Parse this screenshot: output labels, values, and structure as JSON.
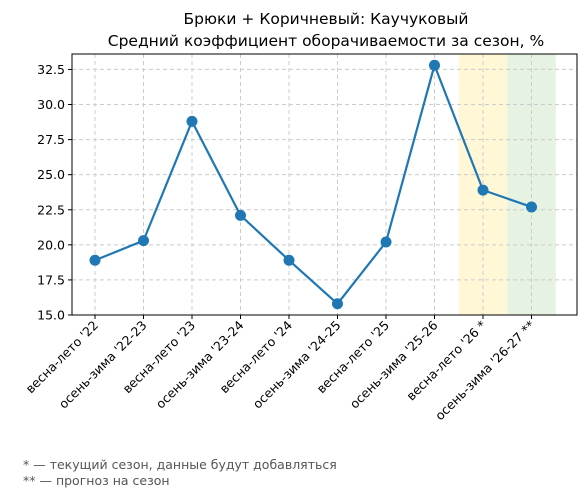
{
  "chart_data": {
    "type": "line",
    "title": "Брюки + Коричневый: Каучуковый",
    "subtitle": "Средний коэффициент оборачиваемости за сезон, %",
    "categories": [
      "весна-лето '22",
      "осень-зима '22-23",
      "весна-лето '23",
      "осень-зима '23-24",
      "весна-лето '24",
      "осень-зима '24-25",
      "весна-лето '25",
      "осень-зима '25-26",
      "весна-лето '26 *",
      "осень-зима '26-27 **"
    ],
    "series": [
      {
        "values": [
          18.9,
          20.3,
          28.8,
          22.1,
          18.9,
          15.8,
          20.2,
          32.8,
          23.9,
          22.7
        ]
      }
    ],
    "ylim": [
      15.0,
      33.6
    ],
    "yticks": [
      "15.0",
      "17.5",
      "20.0",
      "22.5",
      "25.0",
      "27.5",
      "30.0",
      "32.5"
    ],
    "grid": true,
    "highlights": [
      {
        "category_index": 8,
        "color": "#fff7d6"
      },
      {
        "category_index": 9,
        "color": "#e6f2e2"
      }
    ],
    "line_color": "#1f77b4"
  },
  "footnotes": [
    "* — текущий сезон, данные будут добавляться",
    "** — прогноз на сезон"
  ]
}
